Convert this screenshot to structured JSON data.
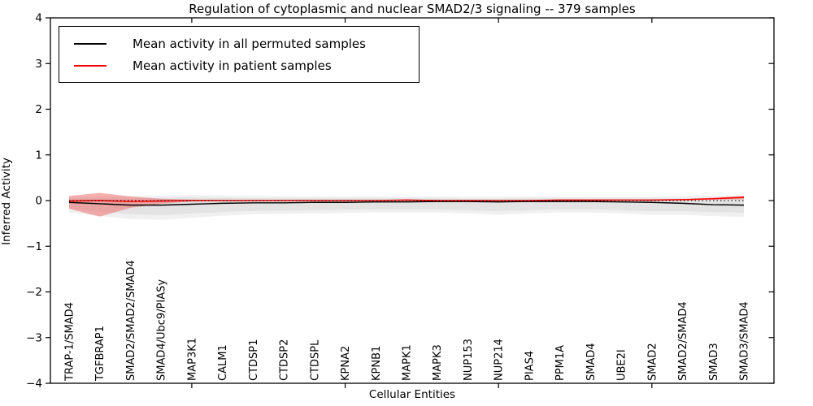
{
  "figure": {
    "title": "Regulation of cytoplasmic and nuclear SMAD2/3 signaling -- 379 samples",
    "xlabel": "Cellular Entities",
    "ylabel": "Inferred Activity"
  },
  "legend": {
    "entries": [
      {
        "label": "Mean activity in all permuted samples",
        "color": "#000000"
      },
      {
        "label": "Mean activity in patient samples",
        "color": "#ff0000"
      }
    ]
  },
  "chart_data": {
    "type": "line",
    "title": "Regulation of cytoplasmic and nuclear SMAD2/3 signaling -- 379 samples",
    "xlabel": "Cellular Entities",
    "ylabel": "Inferred Activity",
    "ylim": [
      -4,
      4
    ],
    "yticks": [
      4,
      3,
      2,
      1,
      0,
      -1,
      -2,
      -3,
      -4
    ],
    "ytick_labels": [
      "4",
      "3",
      "2",
      "1",
      "0",
      "−1",
      "−2",
      "−3",
      "−4"
    ],
    "xticks_major_indices": [
      4,
      9,
      14,
      19
    ],
    "grid": false,
    "legend_position": "upper left",
    "categories": [
      "TRAP-1/SMAD4",
      "TGFBRAP1",
      "SMAD2/SMAD2/SMAD4",
      "SMAD4/Ubc9/PIASy",
      "MAP3K1",
      "CALM1",
      "CTDSP1",
      "CTDSP2",
      "CTDSPL",
      "KPNA2",
      "KPNB1",
      "MAPK1",
      "MAPK3",
      "NUP153",
      "NUP214",
      "PIAS4",
      "PPM1A",
      "SMAD4",
      "UBE2I",
      "SMAD2",
      "SMAD2/SMAD4",
      "SMAD3",
      "SMAD3/SMAD4"
    ],
    "series": [
      {
        "name": "Mean activity in all permuted samples",
        "color": "#000000",
        "width": 1.4,
        "values": [
          -0.04,
          -0.07,
          -0.1,
          -0.1,
          -0.08,
          -0.06,
          -0.05,
          -0.05,
          -0.04,
          -0.04,
          -0.03,
          -0.03,
          -0.02,
          -0.02,
          -0.03,
          -0.02,
          -0.02,
          -0.02,
          -0.03,
          -0.04,
          -0.06,
          -0.09,
          -0.1
        ]
      },
      {
        "name": "Mean activity in patient samples",
        "color": "#ff0000",
        "width": 1.6,
        "values": [
          -0.01,
          0.0,
          -0.02,
          -0.01,
          0.0,
          0.0,
          0.0,
          0.0,
          0.0,
          0.0,
          0.0,
          0.01,
          0.0,
          0.0,
          0.0,
          0.0,
          0.01,
          0.01,
          0.01,
          0.01,
          0.02,
          0.04,
          0.07
        ]
      }
    ],
    "bands": [
      {
        "name": "permuted-range-outer",
        "color": "#f0f0f0",
        "opacity": 1,
        "upper": [
          0.08,
          0.1,
          0.1,
          0.11,
          0.12,
          0.11,
          0.1,
          0.09,
          0.09,
          0.09,
          0.09,
          0.09,
          0.09,
          0.08,
          0.08,
          0.09,
          0.09,
          0.09,
          0.09,
          0.09,
          0.1,
          0.11,
          0.11
        ],
        "lower": [
          -0.26,
          -0.34,
          -0.4,
          -0.42,
          -0.38,
          -0.33,
          -0.3,
          -0.29,
          -0.28,
          -0.27,
          -0.26,
          -0.26,
          -0.26,
          -0.28,
          -0.31,
          -0.28,
          -0.26,
          -0.26,
          -0.28,
          -0.31,
          -0.31,
          -0.34,
          -0.36
        ]
      },
      {
        "name": "permuted-range-inner",
        "color": "#e3e3e3",
        "opacity": 1,
        "upper": [
          0.04,
          0.05,
          0.05,
          0.06,
          0.07,
          0.06,
          0.05,
          0.05,
          0.05,
          0.05,
          0.05,
          0.05,
          0.05,
          0.04,
          0.04,
          0.05,
          0.05,
          0.05,
          0.05,
          0.05,
          0.05,
          0.06,
          0.06
        ],
        "lower": [
          -0.18,
          -0.24,
          -0.3,
          -0.32,
          -0.28,
          -0.25,
          -0.23,
          -0.22,
          -0.21,
          -0.2,
          -0.19,
          -0.19,
          -0.19,
          -0.21,
          -0.23,
          -0.21,
          -0.19,
          -0.19,
          -0.21,
          -0.23,
          -0.23,
          -0.25,
          -0.26
        ]
      },
      {
        "name": "patient-range",
        "color": "#ee7070",
        "opacity": 0.55,
        "upper": [
          0.1,
          0.17,
          0.09,
          0.04,
          0.02,
          0.01,
          0.01,
          0.01,
          0.01,
          0.01,
          0.01,
          0.02,
          0.01,
          0.01,
          0.01,
          0.01,
          0.02,
          0.02,
          0.02,
          0.02,
          0.03,
          0.06,
          0.1
        ],
        "lower": [
          -0.18,
          -0.35,
          -0.16,
          -0.07,
          -0.02,
          -0.01,
          -0.01,
          -0.01,
          -0.01,
          -0.01,
          -0.01,
          0.0,
          -0.01,
          -0.01,
          -0.01,
          -0.01,
          0.0,
          0.0,
          0.0,
          0.0,
          0.01,
          0.02,
          0.03
        ]
      }
    ],
    "zero_line": {
      "y": 0,
      "style": "dotted",
      "color": "#000000"
    }
  }
}
